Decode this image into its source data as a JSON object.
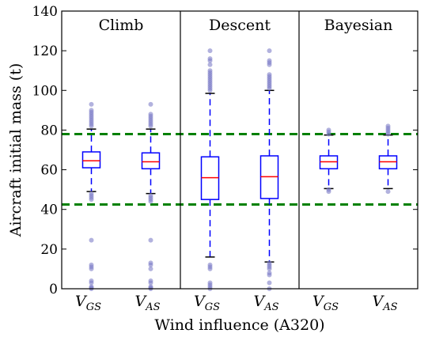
{
  "chart_data": {
    "type": "box",
    "xlabel": "Wind influence (A320)",
    "ylabel": "Aircraft initial mass (t)",
    "ylim": [
      0,
      140
    ],
    "yticks": [
      0,
      20,
      40,
      60,
      80,
      100,
      120,
      140
    ],
    "reference_lines": [
      78,
      42.5
    ],
    "colors": {
      "box": "#0000ff",
      "median": "#ff0000",
      "outlier": "#7f7fc8",
      "reference": "#008000",
      "divider": "#000000"
    },
    "panels": [
      {
        "title": "Climb",
        "boxes": [
          {
            "category": {
              "main": "V",
              "sub": "GS"
            },
            "whisker_low": 49,
            "q1": 61,
            "median": 64.5,
            "q3": 69,
            "whisker_high": 80.5,
            "outliers": [
              0,
              0.5,
              1,
              3,
              4,
              10,
              11,
              12,
              24.5,
              45,
              46,
              47,
              48,
              82,
              83,
              84,
              85,
              86,
              87,
              88,
              89,
              90,
              93
            ]
          },
          {
            "category": {
              "main": "V",
              "sub": "AS"
            },
            "whisker_low": 48,
            "q1": 60.5,
            "median": 64,
            "q3": 68.5,
            "whisker_high": 80.5,
            "outliers": [
              0,
              0.5,
              1,
              3,
              4,
              10,
              12,
              13,
              24.5,
              44,
              45,
              46,
              47,
              82,
              83,
              84,
              85,
              86,
              87,
              88,
              93
            ]
          }
        ]
      },
      {
        "title": "Descent",
        "boxes": [
          {
            "category": {
              "main": "V",
              "sub": "GS"
            },
            "whisker_low": 16,
            "q1": 45,
            "median": 56,
            "q3": 66.5,
            "whisker_high": 98.5,
            "outliers": [
              0,
              1,
              2,
              3,
              10,
              11,
              12,
              100,
              101,
              102,
              103,
              104,
              105,
              106,
              107,
              108,
              109,
              110,
              113,
              115,
              116,
              120
            ]
          },
          {
            "category": {
              "main": "V",
              "sub": "AS"
            },
            "whisker_low": 13.5,
            "q1": 45.5,
            "median": 56.5,
            "q3": 67,
            "whisker_high": 100,
            "outliers": [
              0,
              3,
              7,
              8,
              10,
              11,
              12,
              13,
              101,
              102,
              103,
              104,
              105,
              106,
              107,
              108,
              113,
              114,
              115,
              120
            ]
          }
        ]
      },
      {
        "title": "Bayesian",
        "boxes": [
          {
            "category": {
              "main": "V",
              "sub": "GS"
            },
            "whisker_low": 50.5,
            "q1": 60.5,
            "median": 64,
            "q3": 67,
            "whisker_high": 77.5,
            "outliers": [
              49,
              50,
              78,
              79,
              80
            ]
          },
          {
            "category": {
              "main": "V",
              "sub": "AS"
            },
            "whisker_low": 50.5,
            "q1": 60.5,
            "median": 64,
            "q3": 67,
            "whisker_high": 77.5,
            "outliers": [
              49,
              78,
              79,
              80,
              81,
              82
            ]
          }
        ]
      }
    ]
  }
}
